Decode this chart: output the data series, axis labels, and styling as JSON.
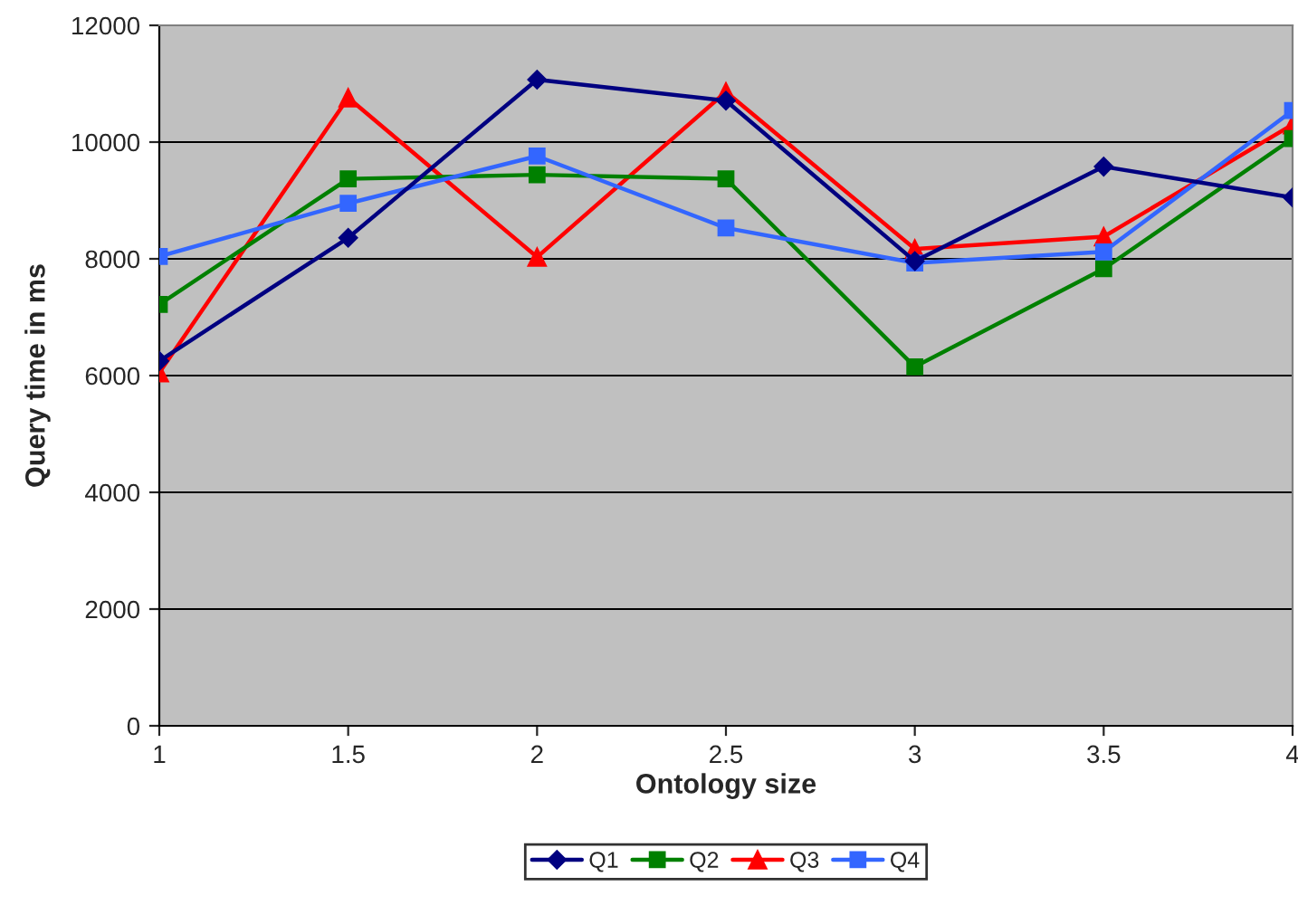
{
  "chart_data": {
    "type": "line",
    "xlabel": "Ontology size",
    "ylabel": "Query time in ms",
    "x": [
      1,
      1.5,
      2,
      2.5,
      3,
      3.5,
      4
    ],
    "series": [
      {
        "name": "Q1",
        "color": "#000080",
        "marker": "diamond",
        "values": [
          6250,
          8360,
          11070,
          10710,
          7960,
          9580,
          9050
        ]
      },
      {
        "name": "Q2",
        "color": "#008000",
        "marker": "square",
        "values": [
          7220,
          9370,
          9440,
          9370,
          6150,
          7830,
          10060
        ]
      },
      {
        "name": "Q3",
        "color": "#ff0000",
        "marker": "triangle",
        "values": [
          6050,
          10760,
          8030,
          10860,
          8170,
          8380,
          10300
        ]
      },
      {
        "name": "Q4",
        "color": "#3366ff",
        "marker": "square",
        "values": [
          8040,
          8950,
          9760,
          8530,
          7930,
          8120,
          10540
        ]
      }
    ],
    "xlim": [
      1,
      4
    ],
    "xticks": [
      1,
      1.5,
      2,
      2.5,
      3,
      3.5,
      4
    ],
    "ylim": [
      0,
      12000
    ],
    "yticks": [
      0,
      2000,
      4000,
      6000,
      8000,
      10000,
      12000
    ],
    "grid": "y",
    "legend": "bottom",
    "line_style": "solid"
  }
}
